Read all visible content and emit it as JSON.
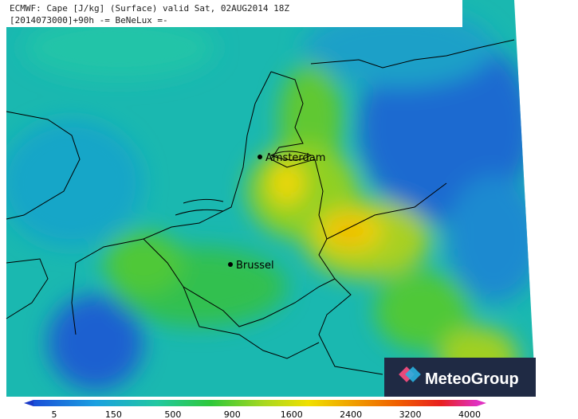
{
  "header": {
    "line1": "ECMWF: Cape [J/kg] (Surface) valid Sat, 02AUG2014 18Z",
    "line2": "[2014073000]+90h -= BeNeLux =-"
  },
  "cities": [
    {
      "label": "Amsterdam"
    },
    {
      "label": "Brussel"
    }
  ],
  "colorbar": {
    "ticks": [
      5,
      150,
      500,
      900,
      1600,
      2400,
      3200,
      4000
    ]
  },
  "logo": {
    "text": "MeteoGroup"
  }
}
